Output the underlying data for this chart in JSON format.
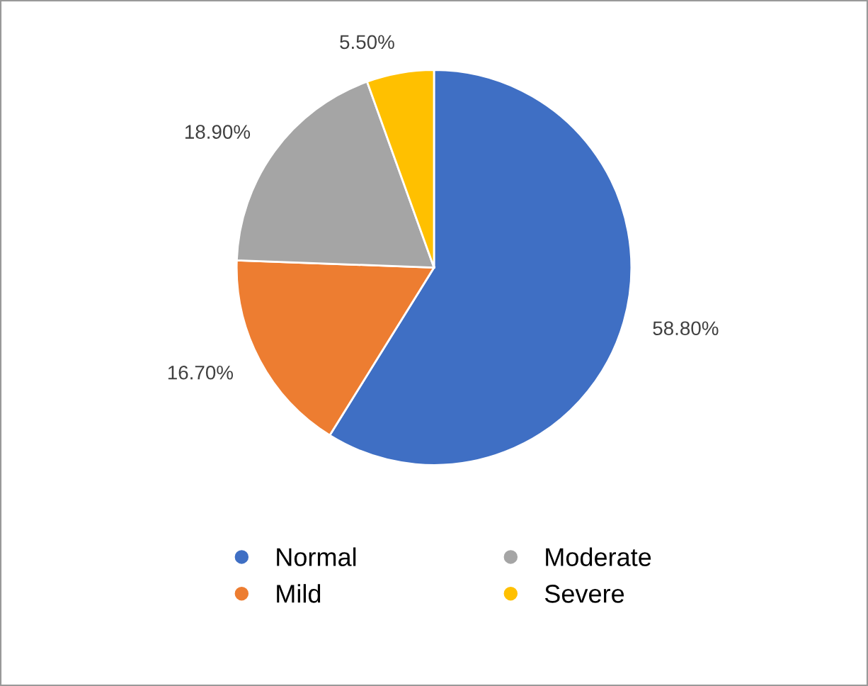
{
  "chart_data": {
    "type": "pie",
    "categories": [
      "Normal",
      "Mild",
      "Moderate",
      "Severe"
    ],
    "values": [
      58.8,
      16.7,
      18.9,
      5.5
    ],
    "colors": [
      "#3f6fc4",
      "#ed7d31",
      "#a5a5a5",
      "#ffc000"
    ],
    "value_labels": [
      "58.80%",
      "16.70%",
      "18.90%",
      "5.50%"
    ],
    "legend": "bottom"
  }
}
